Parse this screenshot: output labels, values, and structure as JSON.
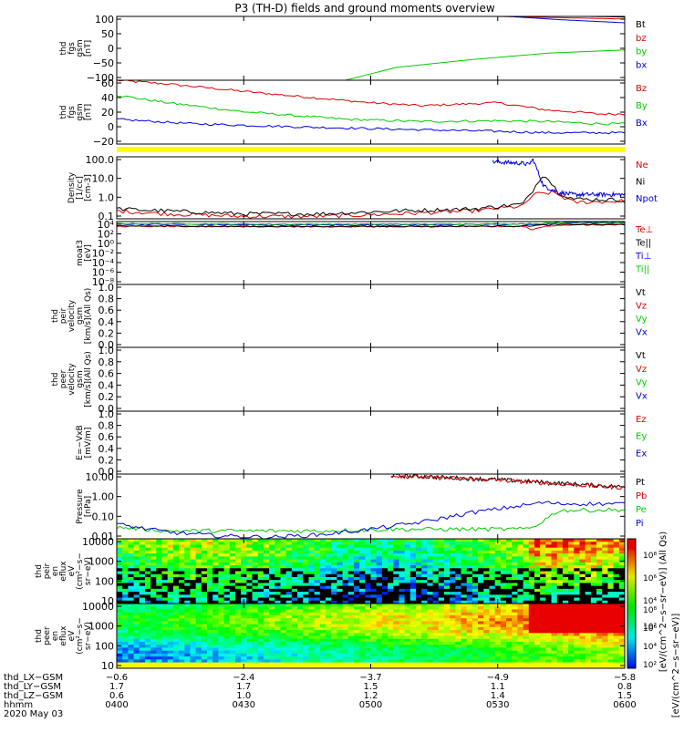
{
  "title": "P3 (TH-D) fields and ground moments overview",
  "colors": {
    "red": "#e00000",
    "green": "#00cc00",
    "blue": "#0000dd",
    "black": "#000000",
    "yellow": "#ffff00"
  },
  "chart_data": [
    {
      "type": "line",
      "ylabel": [
        "thd",
        "fgs",
        "gsm",
        "[nT]"
      ],
      "yticks": [
        "100",
        "50",
        "0",
        "−50",
        "−100"
      ],
      "ylim": [
        -100,
        100
      ],
      "legend": [
        {
          "label": "Bt",
          "color": "#000000"
        },
        {
          "label": "bz",
          "color": "#e00000"
        },
        {
          "label": "by",
          "color": "#00cc00"
        },
        {
          "label": "bx",
          "color": "#0000dd"
        }
      ],
      "series": [
        {
          "name": "Bt",
          "color": "#000000",
          "x": [
            0.75,
            1.0
          ],
          "y": [
            105,
            98
          ]
        },
        {
          "name": "bz",
          "color": "#e00000",
          "x": [
            0.75,
            1.0
          ],
          "y": [
            100,
            92
          ]
        },
        {
          "name": "by",
          "color": "#00cc00",
          "x": [
            0.45,
            0.55,
            0.7,
            0.85,
            1.0
          ],
          "y": [
            -100,
            -60,
            -35,
            -15,
            -5
          ]
        },
        {
          "name": "bx",
          "color": "#0000dd",
          "x": [
            0.75,
            0.87,
            1.0
          ],
          "y": [
            102,
            90,
            80
          ]
        }
      ]
    },
    {
      "type": "line",
      "ylabel": [
        "thd",
        "fgs",
        "gsm",
        "[nT]"
      ],
      "yticks": [
        "60",
        "40",
        "20",
        "0",
        "−20"
      ],
      "ylim": [
        -25,
        60
      ],
      "legend": [
        {
          "label": "Bz",
          "color": "#e00000"
        },
        {
          "label": "By",
          "color": "#00cc00"
        },
        {
          "label": "Bx",
          "color": "#0000dd"
        }
      ],
      "series": [
        {
          "name": "Bz",
          "color": "#e00000",
          "x": [
            0,
            0.1,
            0.3,
            0.5,
            0.6,
            0.75,
            0.85,
            0.9,
            0.95,
            1.0
          ],
          "y": [
            60,
            55,
            42,
            30,
            26,
            30,
            20,
            18,
            15,
            15
          ]
        },
        {
          "name": "By",
          "color": "#00cc00",
          "x": [
            0,
            0.1,
            0.25,
            0.45,
            0.6,
            0.75,
            0.85,
            0.95,
            1.0
          ],
          "y": [
            40,
            30,
            18,
            8,
            5,
            6,
            5,
            2,
            2
          ]
        },
        {
          "name": "Bx",
          "color": "#0000dd",
          "x": [
            0,
            0.15,
            0.35,
            0.6,
            0.75,
            0.85,
            1.0
          ],
          "y": [
            8,
            2,
            -2,
            -6,
            -8,
            -10,
            -10
          ]
        }
      ]
    },
    {
      "type": "line",
      "ylabel": [
        "Density",
        "[1/cc]",
        "[cm-3]"
      ],
      "yticks": [
        "100.0",
        "10.0",
        "1.0",
        "0.1"
      ],
      "ylim": [
        0.05,
        300
      ],
      "ylog": true,
      "legend": [
        {
          "label": "Ne",
          "color": "#e00000"
        },
        {
          "label": "Ni",
          "color": "#000000"
        },
        {
          "label": "Npot",
          "color": "#0000dd"
        }
      ],
      "series": [
        {
          "name": "Ne",
          "color": "#e00000",
          "x": [
            0,
            0.1,
            0.25,
            0.4,
            0.55,
            0.7,
            0.8,
            0.82,
            0.86,
            0.9,
            1.0
          ],
          "y": [
            0.15,
            0.1,
            0.07,
            0.07,
            0.1,
            0.15,
            0.3,
            1.5,
            2.0,
            0.5,
            0.6
          ]
        },
        {
          "name": "Ni",
          "color": "#000000",
          "x": [
            0,
            0.1,
            0.25,
            0.4,
            0.55,
            0.7,
            0.8,
            0.82,
            0.84,
            0.87,
            0.9,
            1.0
          ],
          "y": [
            0.2,
            0.15,
            0.1,
            0.1,
            0.15,
            0.2,
            0.4,
            3,
            30,
            2,
            0.8,
            0.7
          ]
        },
        {
          "name": "Npot",
          "color": "#0000dd",
          "x": [
            0.74,
            0.8,
            0.81,
            0.82,
            0.84,
            0.87,
            0.9,
            1.0
          ],
          "y": [
            150,
            120,
            100,
            200,
            5,
            2,
            1.5,
            1.5
          ]
        }
      ]
    },
    {
      "type": "line",
      "ylabel": [
        "moat3",
        "[eV]"
      ],
      "yticks": [
        "10⁴",
        "10²",
        "10⁰",
        "10⁻²",
        "10⁻⁴",
        "10⁻⁶",
        "10⁻⁸"
      ],
      "ylim": [
        1e-09,
        10000.0
      ],
      "ylog": true,
      "legend": [
        {
          "label": "Te⊥",
          "color": "#e00000"
        },
        {
          "label": "Te||",
          "color": "#000000"
        },
        {
          "label": "Ti⊥",
          "color": "#0000dd"
        },
        {
          "label": "Ti||",
          "color": "#00cc00"
        }
      ],
      "series": [
        {
          "name": "Ti⊥",
          "color": "#0000dd",
          "x": [
            0,
            0.3,
            0.6,
            0.8,
            0.83,
            0.87,
            1.0
          ],
          "y": [
            3000,
            2000,
            2000,
            3000,
            2000,
            8000,
            6000
          ]
        },
        {
          "name": "Ti||",
          "color": "#00cc00",
          "x": [
            0,
            0.3,
            0.6,
            0.8,
            0.87,
            1.0
          ],
          "y": [
            4000,
            3000,
            3000,
            3500,
            5000,
            5000
          ]
        },
        {
          "name": "Te⊥",
          "color": "#e00000",
          "x": [
            0,
            0.3,
            0.6,
            0.8,
            0.82,
            0.84,
            0.87,
            1.0
          ],
          "y": [
            1000,
            900,
            900,
            1000,
            200,
            900,
            2000,
            2000
          ]
        },
        {
          "name": "Te||",
          "color": "#000000",
          "x": [
            0,
            0.3,
            0.6,
            0.8,
            0.87,
            1.0
          ],
          "y": [
            1200,
            1000,
            1000,
            1200,
            2500,
            2500
          ]
        }
      ]
    },
    {
      "type": "line",
      "ylabel": [
        "thd",
        "peir",
        "velocity",
        "gsm",
        "[km/s](All Qs)"
      ],
      "yticks": [
        "1.0",
        "0.8",
        "0.6",
        "0.4",
        "0.2",
        "0.0"
      ],
      "ylim": [
        0,
        1
      ],
      "legend": [
        {
          "label": "Vt",
          "color": "#000000"
        },
        {
          "label": "Vz",
          "color": "#e00000"
        },
        {
          "label": "Vy",
          "color": "#00cc00"
        },
        {
          "label": "Vx",
          "color": "#0000dd"
        }
      ],
      "series": []
    },
    {
      "type": "line",
      "ylabel": [
        "thd",
        "peer",
        "velocity",
        "gsm",
        "[km/s](All Qs)"
      ],
      "yticks": [
        "1.0",
        "0.8",
        "0.6",
        "0.4",
        "0.2",
        "0.0"
      ],
      "ylim": [
        0,
        1
      ],
      "legend": [
        {
          "label": "Vt",
          "color": "#000000"
        },
        {
          "label": "Vz",
          "color": "#e00000"
        },
        {
          "label": "Vy",
          "color": "#00cc00"
        },
        {
          "label": "Vx",
          "color": "#0000dd"
        }
      ],
      "series": []
    },
    {
      "type": "line",
      "ylabel": [
        "E=−VxB",
        "[mV/m]"
      ],
      "yticks": [
        "1.0",
        "0.8",
        "0.6",
        "0.4",
        "0.2",
        "0.0"
      ],
      "ylim": [
        0,
        1
      ],
      "legend": [
        {
          "label": "Ez",
          "color": "#e00000"
        },
        {
          "label": "Ey",
          "color": "#00cc00"
        },
        {
          "label": "Ex",
          "color": "#0000dd"
        }
      ],
      "series": []
    },
    {
      "type": "line",
      "ylabel": [
        "Pressure",
        "[nPa]"
      ],
      "yticks": [
        "10.00",
        "1.00",
        "0.10",
        "0.01"
      ],
      "ylim": [
        0.004,
        30
      ],
      "ylog": true,
      "legend": [
        {
          "label": "Pt",
          "color": "#000000"
        },
        {
          "label": "Pb",
          "color": "#e00000"
        },
        {
          "label": "Pe",
          "color": "#00cc00"
        },
        {
          "label": "Pi",
          "color": "#0000dd"
        }
      ],
      "series": [
        {
          "name": "Pt",
          "color": "#000000",
          "x": [
            0.54,
            0.75,
            1.0
          ],
          "y": [
            25,
            14,
            5
          ]
        },
        {
          "name": "Pb",
          "color": "#e00000",
          "x": [
            0.54,
            0.75,
            1.0
          ],
          "y": [
            24,
            13,
            4.5
          ]
        },
        {
          "name": "Pe",
          "color": "#00cc00",
          "x": [
            0,
            0.1,
            0.25,
            0.4,
            0.55,
            0.7,
            0.8,
            0.82,
            0.84,
            0.87,
            1.0
          ],
          "y": [
            0.02,
            0.012,
            0.012,
            0.012,
            0.015,
            0.015,
            0.015,
            0.02,
            0.05,
            0.2,
            0.22
          ]
        },
        {
          "name": "Pi",
          "color": "#0000dd",
          "x": [
            0,
            0.1,
            0.2,
            0.3,
            0.4,
            0.5,
            0.6,
            0.7,
            0.8,
            0.84,
            0.87,
            1.0
          ],
          "y": [
            0.03,
            0.01,
            0.006,
            0.005,
            0.007,
            0.015,
            0.04,
            0.15,
            0.4,
            0.6,
            0.5,
            0.5
          ]
        }
      ]
    },
    {
      "type": "heatmap",
      "ylabel": [
        "thd",
        "peir",
        "en",
        "eflux",
        "eV",
        "(cm²−s−",
        "sr−eV)"
      ],
      "yticks": [
        "10000",
        "1000",
        "100",
        "10"
      ],
      "ylim": [
        5,
        30000
      ],
      "ylog": true
    },
    {
      "type": "heatmap",
      "ylabel": [
        "thd",
        "peer",
        "en",
        "eflux",
        "eV",
        "(cm²−s−",
        "sr−eV)"
      ],
      "yticks": [
        "10000",
        "1000",
        "100",
        "10"
      ],
      "ylim": [
        5,
        30000
      ],
      "ylog": true
    }
  ],
  "colorbar": {
    "ticks": [
      "10⁸",
      "10⁶",
      "10⁴",
      "10²"
    ],
    "label_top": "[eV/(cm^2−s−sr−eV)] (All Qs)",
    "label_bottom": "[eV/(cm^2−s−sr−eV)]"
  },
  "xaxis": {
    "labels": [
      "thd_LX−GSM",
      "thd_LY−GSM",
      "thd_LZ−GSM",
      "hhmm",
      "2020 May 03"
    ],
    "ticks": [
      {
        "pos": 0,
        "lx": "−0.6",
        "ly": "1.7",
        "lz": "0.6",
        "hhmm": "0400"
      },
      {
        "pos": 0.25,
        "lx": "−2.4",
        "ly": "1.7",
        "lz": "1.0",
        "hhmm": "0430"
      },
      {
        "pos": 0.5,
        "lx": "−3.7",
        "ly": "1.5",
        "lz": "1.2",
        "hhmm": "0500"
      },
      {
        "pos": 0.75,
        "lx": "−4.9",
        "ly": "1.1",
        "lz": "1.4",
        "hhmm": "0530"
      },
      {
        "pos": 1.0,
        "lx": "−5.8",
        "ly": "0.8",
        "lz": "1.5",
        "hhmm": "0600"
      }
    ]
  }
}
